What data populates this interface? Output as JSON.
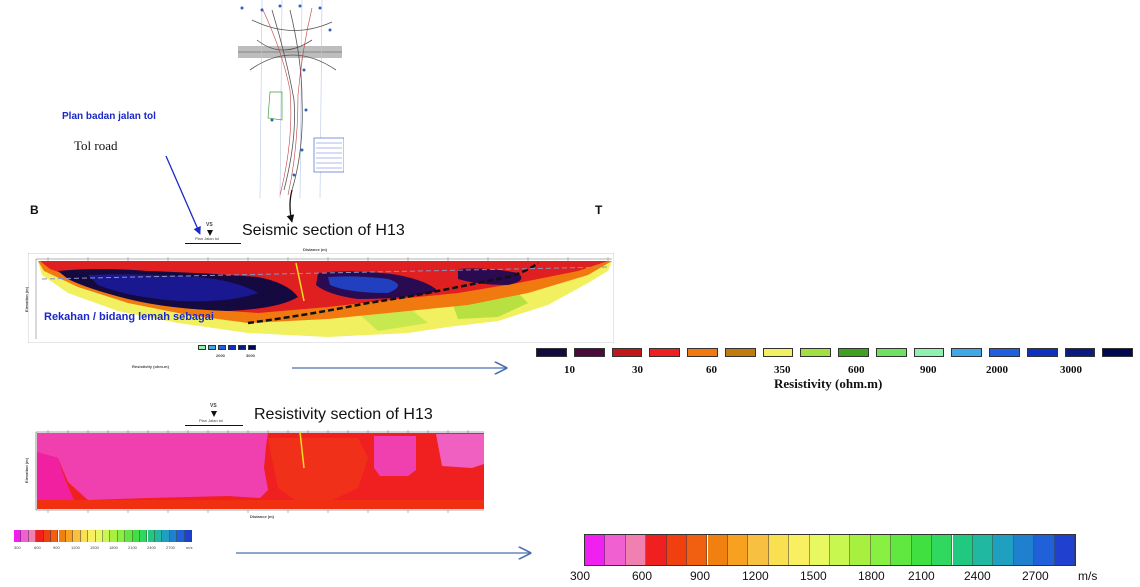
{
  "map": {
    "plan_label": "Plan badan jalan tol",
    "tol_road_label": "Tol road"
  },
  "profile_endpoints": {
    "left": "B",
    "right": "T"
  },
  "seismic_title": "Seismic section of H13",
  "resistivity_title": "Resistivity section of H13",
  "upper_section": {
    "station_label": "VS",
    "plan_label": "Plan Jalan tol",
    "distance_label": "Distance (m)",
    "elevation_label": "Elevation (m)",
    "annotation": "Rekahan / bidang lemah sebagai",
    "mini_legend_values": [
      "2000",
      "3000"
    ],
    "mini_legend_title": "Resistivity (ohm.m)"
  },
  "lower_section": {
    "station_label": "VS",
    "plan_label": "Plan Jalan tol",
    "distance_label": "Distance (m)",
    "elevation_label": "Elevation (m)",
    "mini_legend_values": [
      "300",
      "600",
      "900",
      "1200",
      "1500",
      "1800",
      "2100",
      "2400",
      "2700",
      "m/s"
    ]
  },
  "resistivity_legend": {
    "title": "Resistivity (ohm.m)",
    "values": [
      "10",
      "30",
      "60",
      "350",
      "600",
      "900",
      "2000",
      "3000"
    ],
    "colors": [
      "#150a40",
      "#4a0a3a",
      "#c01818",
      "#ee2020",
      "#f07a10",
      "#c07a10",
      "#f0f060",
      "#a0e040",
      "#40a020",
      "#70e060",
      "#90f0b0",
      "#40a8e8",
      "#2060e0",
      "#1030c0",
      "#0a1a80",
      "#000850"
    ]
  },
  "velocity_legend": {
    "values": [
      "300",
      "600",
      "900",
      "1200",
      "1500",
      "1800",
      "2100",
      "2400",
      "2700",
      "m/s"
    ],
    "colors": [
      "#f020f0",
      "#f060d0",
      "#f080b0",
      "#f02020",
      "#f04010",
      "#f06010",
      "#f08010",
      "#f8a020",
      "#f8c040",
      "#f8e050",
      "#f8f060",
      "#e8f860",
      "#c8f850",
      "#a8f040",
      "#88f040",
      "#60e840",
      "#40e040",
      "#30d860",
      "#20c880",
      "#20b8a0",
      "#20a0c0",
      "#2080d0",
      "#2060d8",
      "#2040d0"
    ]
  }
}
